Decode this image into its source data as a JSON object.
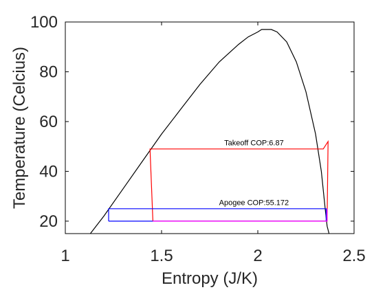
{
  "chart_data": {
    "type": "line",
    "xlabel": "Entropy (J/K)",
    "ylabel": "Temperature (Celcius)",
    "xlim": [
      1,
      2.5
    ],
    "ylim": [
      15,
      100
    ],
    "xticks": [
      1,
      1.5,
      2,
      2.5
    ],
    "yticks": [
      20,
      40,
      60,
      80,
      100
    ],
    "xtick_labels": [
      "1",
      "1.5",
      "2",
      "2.5"
    ],
    "ytick_labels": [
      "20",
      "40",
      "60",
      "80",
      "100"
    ],
    "grid": false,
    "series": [
      {
        "color": "#000000",
        "x": [
          1.13,
          1.2,
          1.3,
          1.4,
          1.5,
          1.6,
          1.7,
          1.8,
          1.9,
          1.95,
          2.0,
          2.02,
          2.04,
          2.07,
          2.1,
          2.15,
          2.2,
          2.25,
          2.3,
          2.33,
          2.35,
          2.36,
          2.37
        ],
        "y": [
          15,
          22,
          33,
          44,
          55,
          65,
          75,
          84,
          91,
          94,
          96,
          97,
          97,
          97,
          96,
          92,
          84,
          72,
          55,
          40,
          25,
          18,
          15
        ]
      },
      {
        "color": "#ff0000",
        "x": [
          1.455,
          1.44,
          2.34,
          2.365,
          2.36,
          1.455
        ],
        "y": [
          20,
          49,
          49,
          52,
          20,
          20
        ]
      },
      {
        "color": "#0000ff",
        "x": [
          1.225,
          1.225,
          2.355,
          2.355,
          1.225
        ],
        "y": [
          20,
          25,
          25,
          20,
          20
        ]
      },
      {
        "color": "#ff00ff",
        "x": [
          1.455,
          2.36,
          2.36
        ],
        "y": [
          20,
          20,
          25
        ]
      }
    ],
    "annotations": [
      {
        "text": "Takeoff COP:6.87",
        "x": 1.98,
        "y": 50.5
      },
      {
        "text": "Apogee COP:55.172",
        "x": 1.98,
        "y": 26.5
      }
    ]
  }
}
